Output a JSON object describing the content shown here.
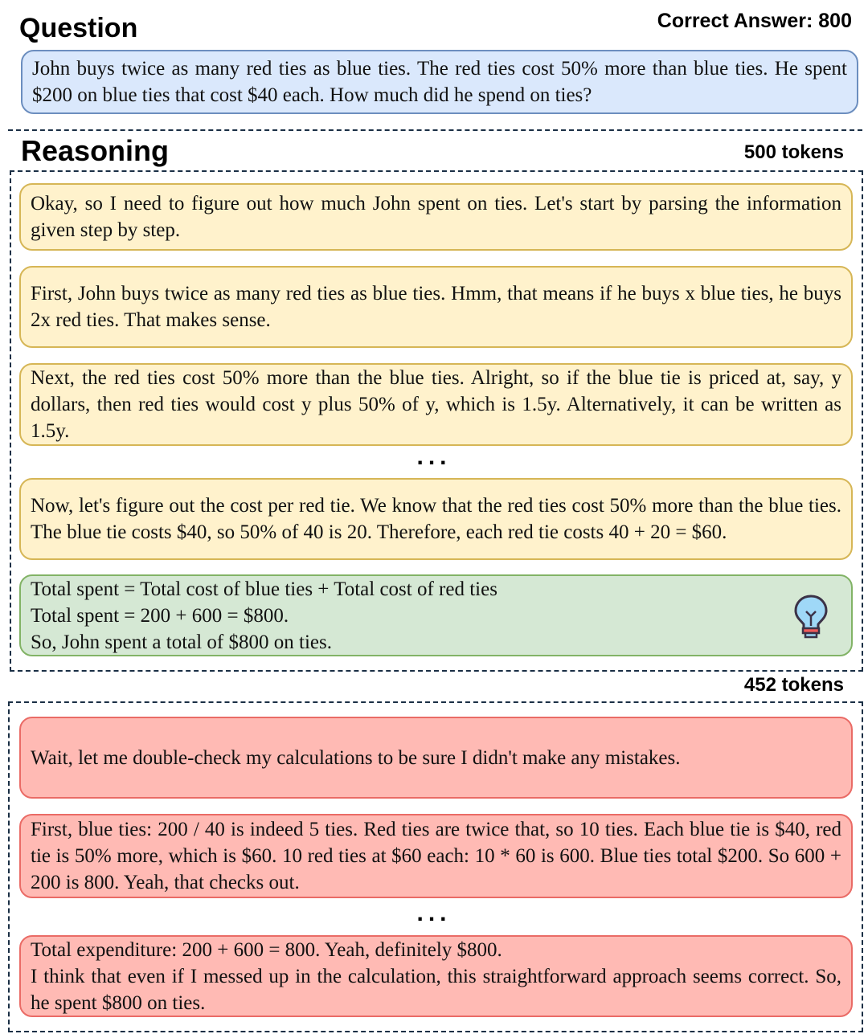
{
  "question": {
    "heading": "Question",
    "correct_answer": "Correct Answer: 800",
    "text": "John buys twice as many red ties as blue ties.  The red ties cost 50% more than blue ties. He spent $200 on blue ties that cost $40 each. How much did he spend on ties?"
  },
  "reasoning": {
    "heading": "Reasoning",
    "ellipsis": "...",
    "part1": {
      "tokens": "500 tokens",
      "steps": [
        "Okay, so I need to figure out how much John spent on ties. Let's start by parsing the information given step by step.",
        "First, John buys twice as many red ties as blue ties. Hmm, that means if he buys x blue ties, he buys 2x red ties. That makes sense.",
        "Next, the red ties cost 50% more than the blue ties. Alright, so if the blue tie is priced at, say, y dollars, then red ties would cost y plus 50% of y, which is 1.5y. Alternatively, it can be written as 1.5y.",
        "Now, let's figure out the cost per red tie. We know that the red ties cost 50% more than the blue ties. The blue tie costs $40, so 50% of 40 is 20. Therefore, each red tie costs 40 + 20 = $60."
      ],
      "answer_lines": [
        "Total spent = Total cost of blue ties + Total cost of red ties",
        "Total spent = 200 + 600 = $800.",
        "So, John spent a total of $800 on ties."
      ],
      "answer_icon": "lightbulb-icon"
    },
    "part2": {
      "tokens": "452 tokens",
      "steps": [
        "Wait, let me double-check my calculations to be sure I didn't make any mistakes.",
        "First, blue ties: 200 / 40 is indeed 5 ties. Red ties are twice that, so 10 ties. Each blue tie is $40, red tie is 50% more, which is $60. 10 red ties at $60 each: 10 * 60 is 600. Blue ties total $200. So 600 + 200 is 800. Yeah, that checks out."
      ],
      "final_lines": [
        "Total expenditure: 200 + 600 = 800. Yeah, definitely $800.",
        "I think that even if I messed up in the calculation, this straightforward approach seems correct. So, he spent $800 on ties."
      ]
    }
  },
  "colors": {
    "question": "#dae8fc",
    "step": "#fff2cc",
    "answer": "#d5e8d4",
    "overthinking": "#ffbab4"
  }
}
